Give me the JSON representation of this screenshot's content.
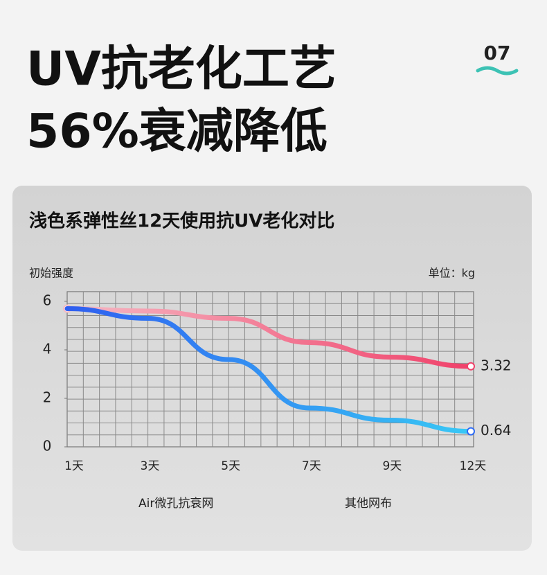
{
  "header": {
    "title_line1": "UV抗老化工艺",
    "title_line2": "56%衰减降低",
    "badge": "07"
  },
  "chart_data": {
    "type": "line",
    "title": "浅色系弹性丝12天使用抗UV老化对比",
    "y_label": "初始强度",
    "unit_label": "单位：kg",
    "categories": [
      "1天",
      "3天",
      "5天",
      "7天",
      "9天",
      "12天"
    ],
    "series": [
      {
        "name": "Air微孔抗衰网",
        "color": "#f0416a",
        "values": [
          5.7,
          5.6,
          5.3,
          4.3,
          3.7,
          3.32
        ]
      },
      {
        "name": "其他网布",
        "color": "#2f6cf5",
        "values": [
          5.7,
          5.3,
          3.6,
          1.6,
          1.1,
          0.64
        ]
      }
    ],
    "ylim": [
      0,
      6.4
    ],
    "yticks": [
      0,
      2,
      4,
      6
    ],
    "grid": true
  }
}
